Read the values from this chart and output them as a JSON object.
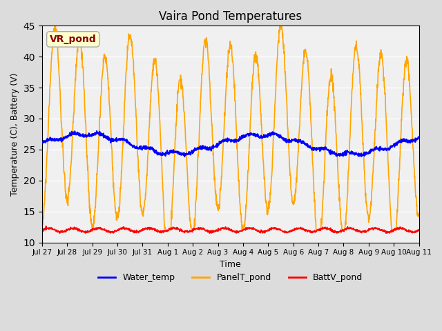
{
  "title": "Vaira Pond Temperatures",
  "ylabel": "Temperature (C), Battery (V)",
  "xlabel": "Time",
  "ylim": [
    10,
    45
  ],
  "annotation_text": "VR_pond",
  "annotation_color": "#8B0000",
  "annotation_bg": "#FFFFCC",
  "bg_color": "#E8E8E8",
  "plot_bg": "#F0F0F0",
  "legend_labels": [
    "Water_temp",
    "PanelT_pond",
    "BattV_pond"
  ],
  "legend_colors": [
    "blue",
    "orange",
    "red"
  ],
  "x_tick_labels": [
    "Jul 27",
    "Jul 28",
    "Jul 29",
    "Jul 30",
    "Jul 31",
    "Aug 1",
    "Aug 2",
    "Aug 3",
    "Aug 4",
    "Aug 5",
    "Aug 6",
    "Aug 7",
    "Aug 8",
    "Aug 9",
    "Aug 10",
    "Aug 11"
  ],
  "num_days": 15,
  "water_base": 26.0,
  "water_amplitude": 1.2,
  "panel_base_min": 13.5,
  "panel_base_max": 40.0,
  "batt_base": 12.0,
  "batt_amplitude": 0.3
}
